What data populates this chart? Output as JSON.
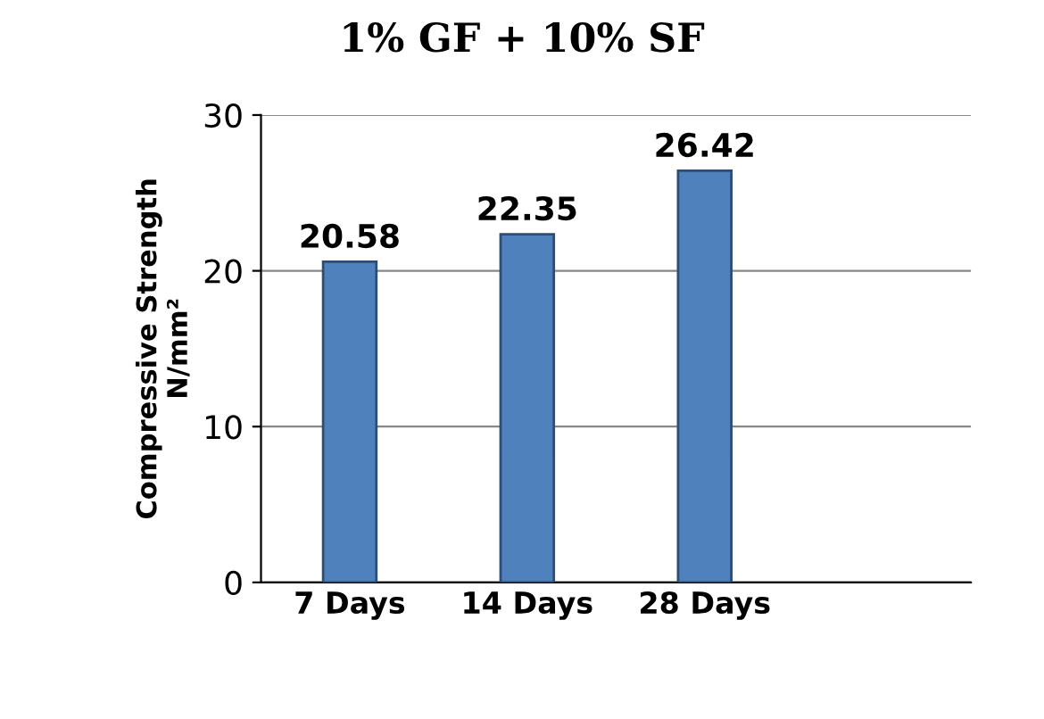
{
  "chart_data": {
    "type": "bar",
    "title": "1% GF + 10% SF",
    "ylabel": "Compressive Strength\nN/mm²",
    "categories": [
      "7 Days",
      "14 Days",
      "28 Days"
    ],
    "values": [
      20.58,
      22.35,
      26.42
    ],
    "color": "#4f81bd",
    "ylim": [
      0,
      30
    ],
    "yticks": [
      0,
      10,
      20,
      30
    ],
    "grid": "y",
    "data_labels": true
  }
}
